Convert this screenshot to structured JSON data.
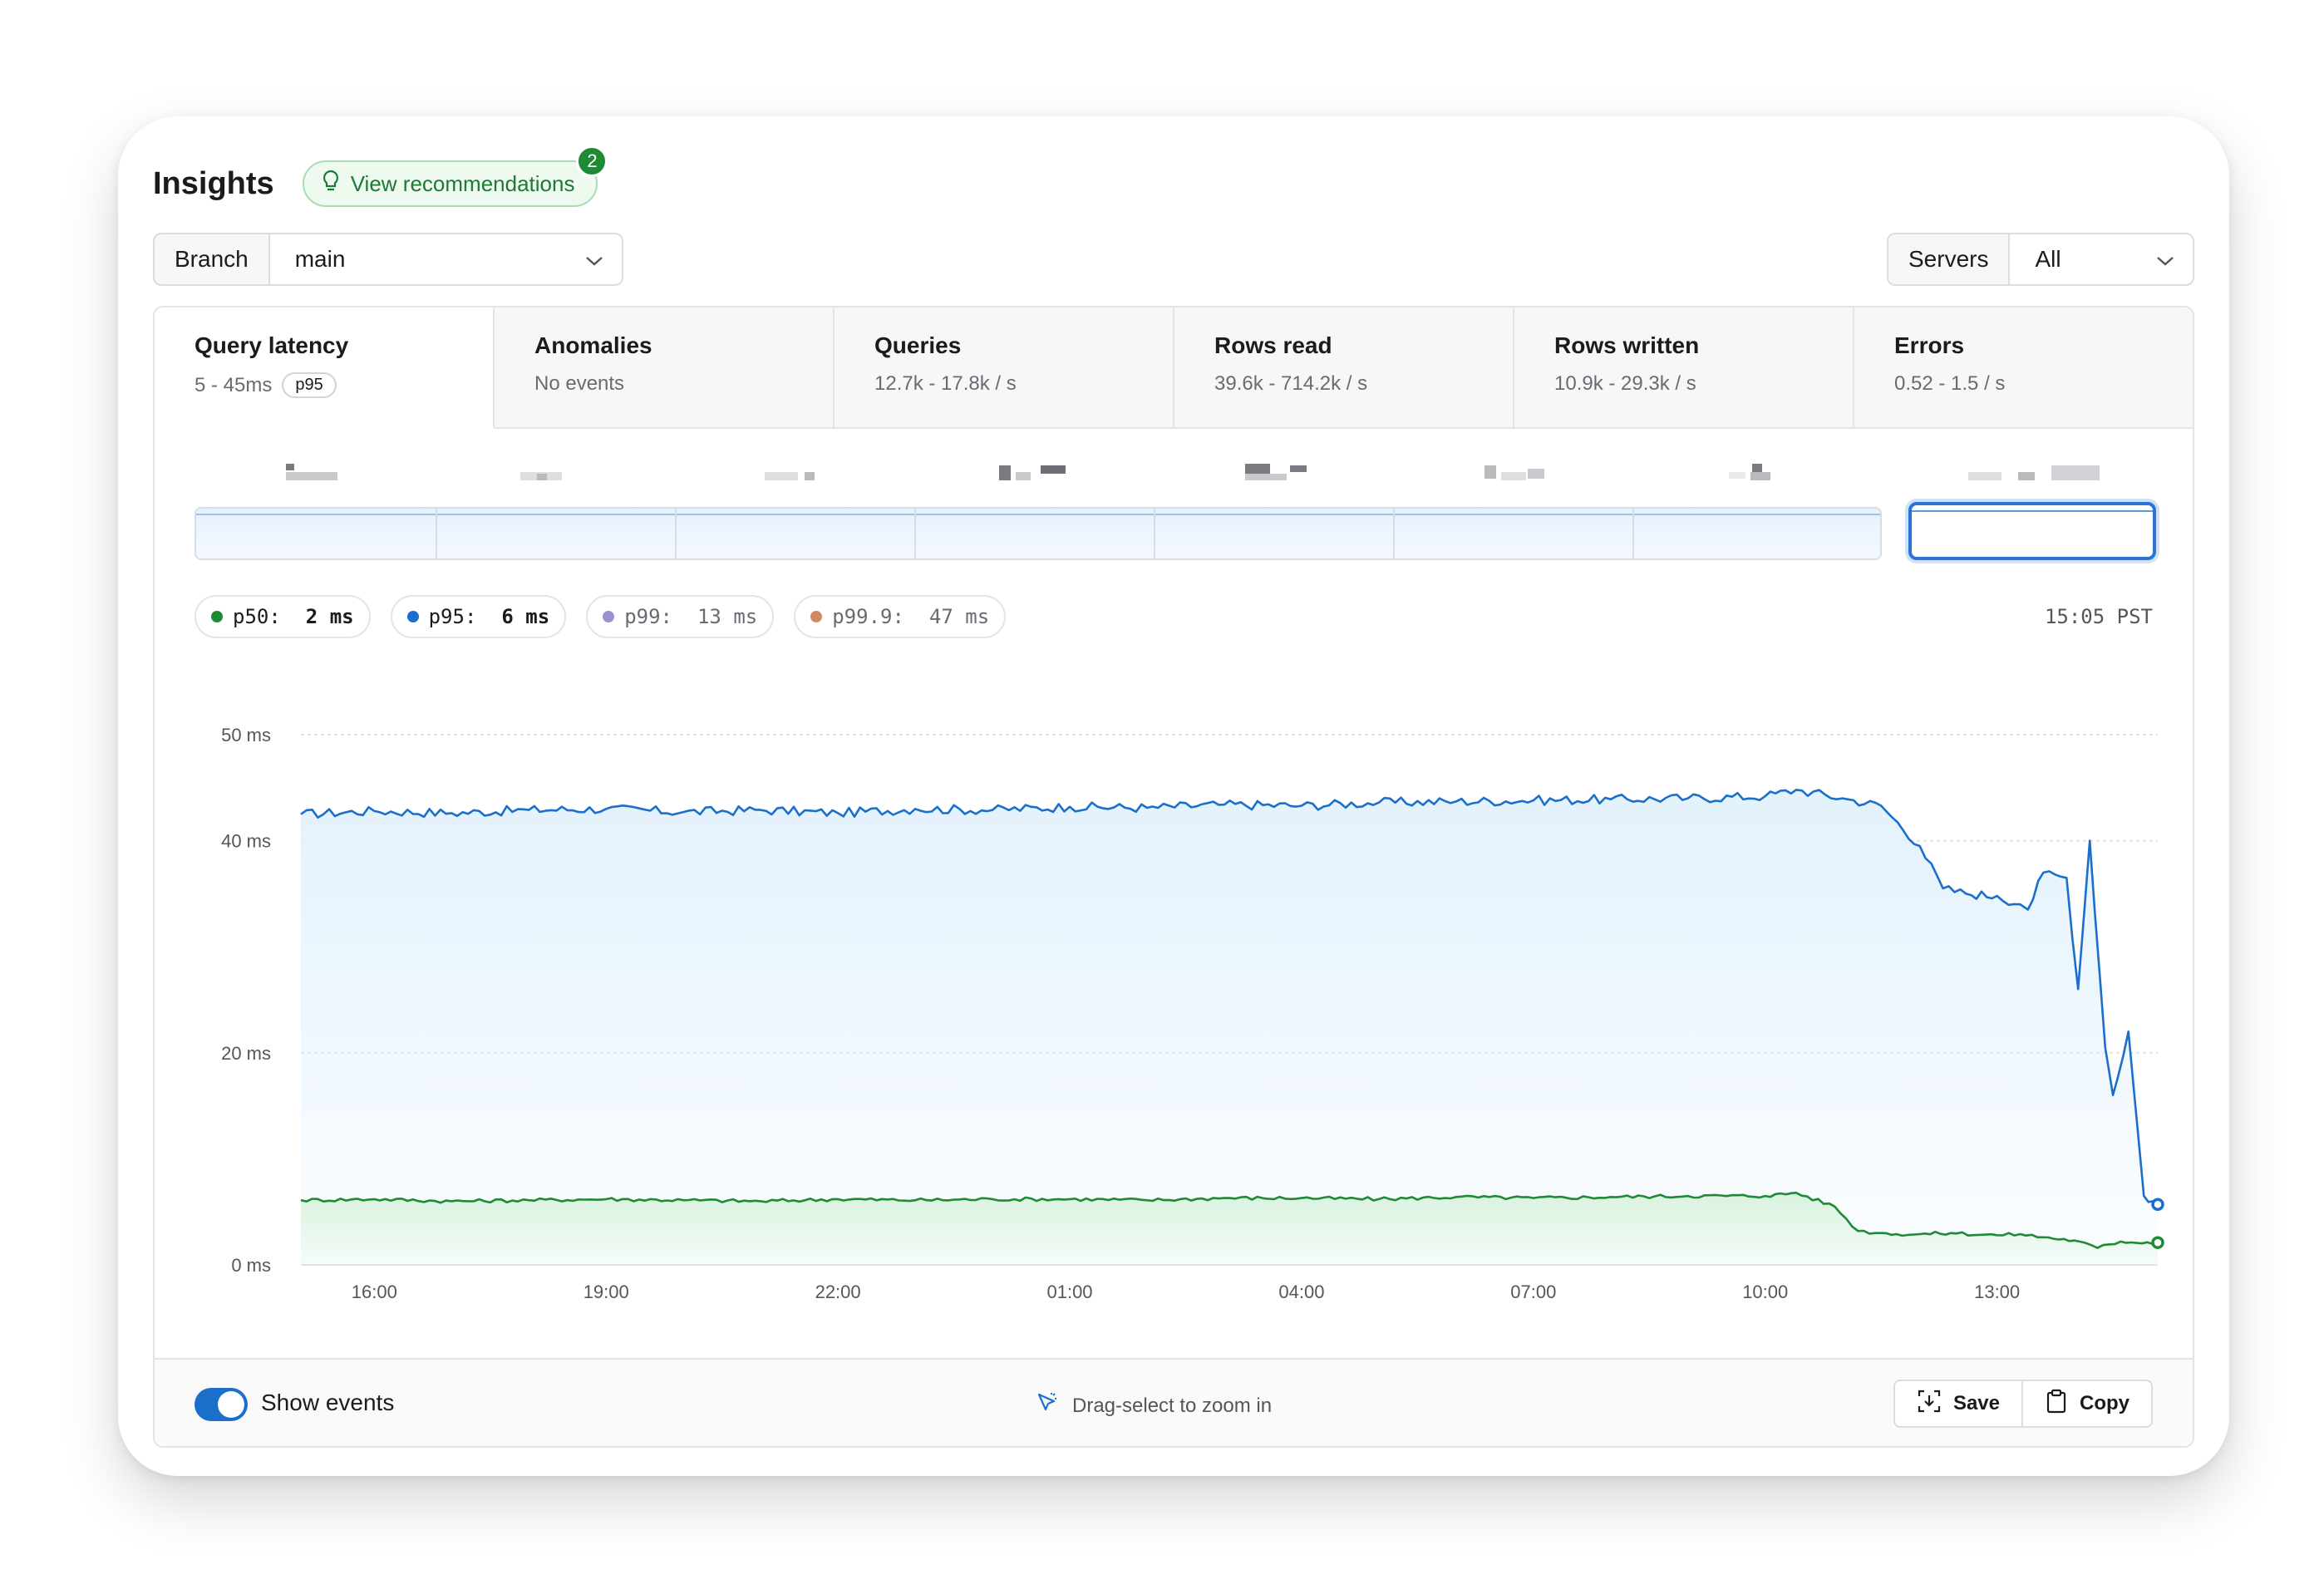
{
  "header": {
    "title": "Insights",
    "recommendations_label": "View recommendations",
    "recommendations_count": "2"
  },
  "branch_select": {
    "label": "Branch",
    "value": "main"
  },
  "servers_select": {
    "label": "Servers",
    "value": "All"
  },
  "tabs": [
    {
      "title": "Query latency",
      "subtitle": "5 - 45ms",
      "pill": "p95",
      "active": true
    },
    {
      "title": "Anomalies",
      "subtitle": "No events"
    },
    {
      "title": "Queries",
      "subtitle": "12.7k - 17.8k / s"
    },
    {
      "title": "Rows read",
      "subtitle": "39.6k - 714.2k / s"
    },
    {
      "title": "Rows written",
      "subtitle": "10.9k - 29.3k / s"
    },
    {
      "title": "Errors",
      "subtitle": "0.52 - 1.5 / s"
    }
  ],
  "legend": [
    {
      "name": "p50:",
      "value": "2 ms",
      "color": "#1f8a35",
      "active": true
    },
    {
      "name": "p95:",
      "value": "6 ms",
      "color": "#1a6fcb",
      "active": true
    },
    {
      "name": "p99:",
      "value": "13 ms",
      "color": "#9b8fd0",
      "active": false
    },
    {
      "name": "p99.9:",
      "value": "47 ms",
      "color": "#d08a63",
      "active": false
    }
  ],
  "timestamp": "15:05 PST",
  "chart_data": {
    "type": "area",
    "y_ticks": [
      "0 ms",
      "20 ms",
      "40 ms",
      "50 ms"
    ],
    "y_tick_values": [
      0,
      20,
      40,
      50
    ],
    "ylim": [
      0,
      50
    ],
    "x_ticks": [
      "16:00",
      "19:00",
      "22:00",
      "01:00",
      "04:00",
      "07:00",
      "10:00",
      "13:00"
    ],
    "x_tick_hours": [
      16,
      19,
      22,
      25,
      28,
      31,
      34,
      37
    ],
    "xlim_hours": [
      15.05,
      39.08
    ],
    "grid": true,
    "series": [
      {
        "name": "p95",
        "color": "#1a6fcb",
        "fill_top": "#e2f1fc",
        "x_hours": [
          15.05,
          16,
          17,
          18,
          19,
          20,
          21,
          22,
          23,
          24,
          25,
          26,
          27,
          28,
          29,
          30,
          31,
          32,
          33,
          34,
          34.4,
          35,
          35.5,
          36,
          36.3,
          36.6,
          37,
          37.3,
          37.4,
          37.6,
          37.9,
          38.05,
          38.2,
          38.4,
          38.5,
          38.7,
          38.9,
          39.08
        ],
        "values": [
          42.5,
          42.8,
          42.6,
          42.9,
          43.0,
          42.7,
          42.9,
          42.6,
          43.0,
          42.9,
          43.2,
          43.1,
          43.4,
          43.3,
          43.6,
          43.7,
          43.8,
          43.9,
          44.0,
          44.2,
          44.8,
          44.0,
          43.3,
          39.5,
          35.5,
          35.0,
          34.8,
          34.0,
          33.5,
          37.0,
          36.5,
          26.0,
          40.0,
          20.5,
          16.0,
          22.0,
          6.5,
          5.7
        ]
      },
      {
        "name": "p50",
        "color": "#1f8a35",
        "fill_top": "#d8f2dd",
        "x_hours": [
          15.05,
          16,
          17,
          18,
          19,
          20,
          21,
          22,
          23,
          24,
          25,
          26,
          27,
          28,
          29,
          30,
          31,
          32,
          33,
          34,
          34.4,
          34.9,
          35.2,
          35.5,
          35.7,
          36,
          36.4,
          37,
          37.3,
          37.6,
          38,
          38.3,
          38.6,
          39.08
        ],
        "values": [
          6.1,
          6.2,
          6.0,
          6.1,
          6.2,
          6.1,
          6.0,
          6.2,
          6.1,
          6.2,
          6.2,
          6.1,
          6.3,
          6.3,
          6.2,
          6.4,
          6.3,
          6.4,
          6.5,
          6.5,
          6.8,
          5.5,
          3.2,
          3.0,
          2.9,
          2.9,
          3.0,
          2.8,
          2.9,
          2.6,
          2.3,
          1.6,
          2.2,
          2.1
        ]
      }
    ]
  },
  "footer": {
    "toggle_label": "Show events",
    "hint": "Drag-select to zoom in",
    "save_label": "Save",
    "copy_label": "Copy"
  }
}
